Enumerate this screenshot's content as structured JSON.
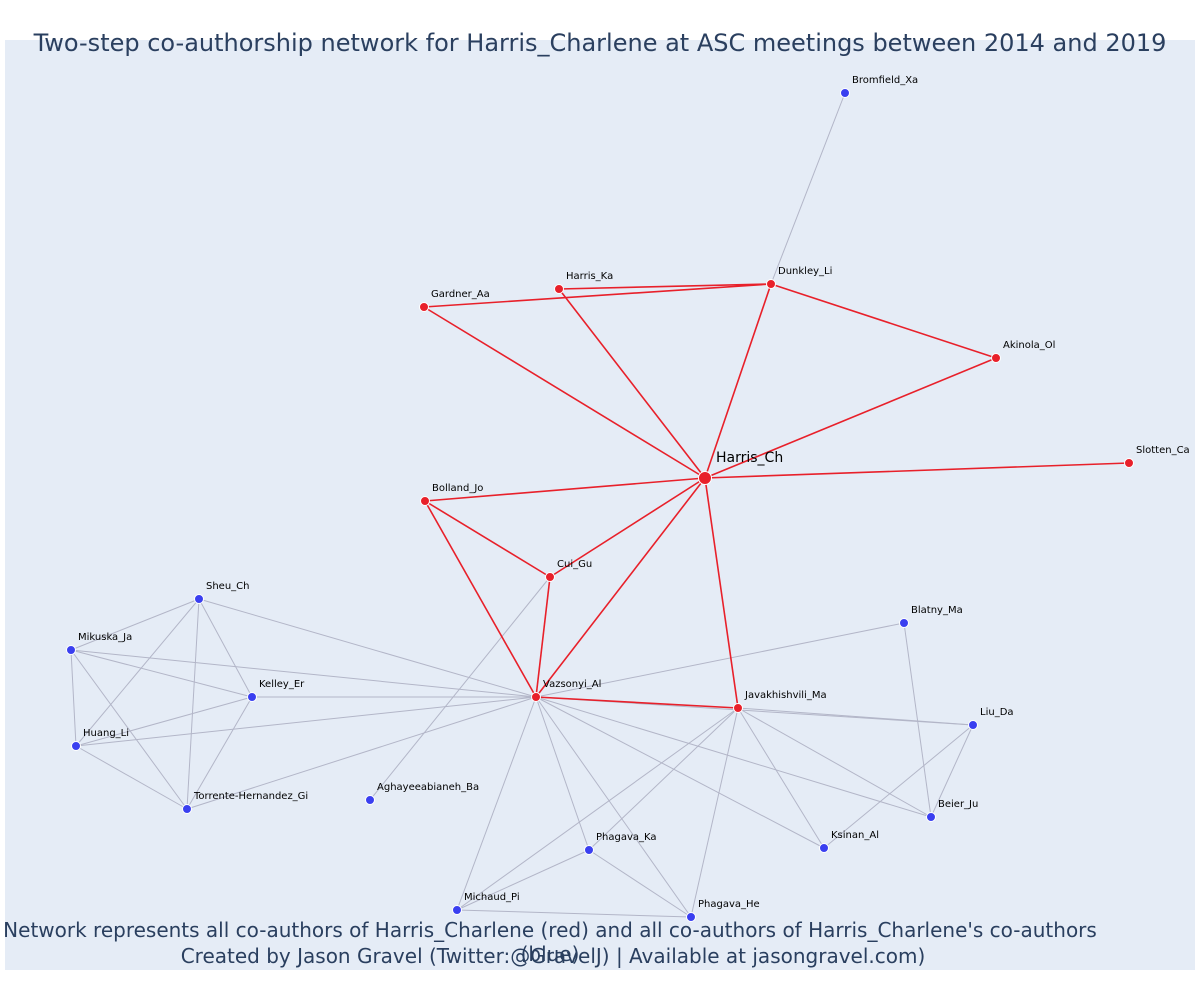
{
  "title": "Two-step co-authorship network for Harris_Charlene at ASC meetings between 2014 and 2019",
  "footer": {
    "line1": "Network represents all co-authors of Harris_Charlene (red) and all co-authors of Harris_Charlene's co-authors (blue)",
    "line2": "Created by Jason Gravel (Twitter:@GravelJ) | Available at jasongravel.com)"
  },
  "colors": {
    "first_degree": "#e8202a",
    "second_degree": "#3a3ff0",
    "first_edge": "#e8202a",
    "second_edge": "#b3b6c8",
    "background": "#e5ecf6"
  },
  "graph": {
    "nodes": [
      {
        "id": "Harris_Ch",
        "group": "center"
      },
      {
        "id": "Bromfield_Xa",
        "group": "second"
      },
      {
        "id": "Dunkley_Li",
        "group": "first"
      },
      {
        "id": "Harris_Ka",
        "group": "first"
      },
      {
        "id": "Gardner_Aa",
        "group": "first"
      },
      {
        "id": "Akinola_Ol",
        "group": "first"
      },
      {
        "id": "Slotten_Ca",
        "group": "first"
      },
      {
        "id": "Bolland_Jo",
        "group": "first"
      },
      {
        "id": "Cui_Gu",
        "group": "first"
      },
      {
        "id": "Vazsonyi_Al",
        "group": "first"
      },
      {
        "id": "Javakhishvili_Ma",
        "group": "first"
      },
      {
        "id": "Sheu_Ch",
        "group": "second"
      },
      {
        "id": "Mikuska_Ja",
        "group": "second"
      },
      {
        "id": "Kelley_Er",
        "group": "second"
      },
      {
        "id": "Huang_Li",
        "group": "second"
      },
      {
        "id": "Torrente-Hernandez_Gi",
        "group": "second"
      },
      {
        "id": "Aghayeeabianeh_Ba",
        "group": "second"
      },
      {
        "id": "Blatny_Ma",
        "group": "second"
      },
      {
        "id": "Liu_Da",
        "group": "second"
      },
      {
        "id": "Beier_Ju",
        "group": "second"
      },
      {
        "id": "Ksinan_Al",
        "group": "second"
      },
      {
        "id": "Phagava_Ka",
        "group": "second"
      },
      {
        "id": "Michaud_Pi",
        "group": "second"
      },
      {
        "id": "Phagava_He",
        "group": "second"
      }
    ],
    "edges": [
      [
        "Harris_Ch",
        "Gardner_Aa",
        "first"
      ],
      [
        "Harris_Ch",
        "Harris_Ka",
        "first"
      ],
      [
        "Harris_Ch",
        "Dunkley_Li",
        "first"
      ],
      [
        "Harris_Ch",
        "Akinola_Ol",
        "first"
      ],
      [
        "Harris_Ch",
        "Slotten_Ca",
        "first"
      ],
      [
        "Harris_Ch",
        "Bolland_Jo",
        "first"
      ],
      [
        "Harris_Ch",
        "Cui_Gu",
        "first"
      ],
      [
        "Harris_Ch",
        "Vazsonyi_Al",
        "first"
      ],
      [
        "Harris_Ch",
        "Javakhishvili_Ma",
        "first"
      ],
      [
        "Gardner_Aa",
        "Dunkley_Li",
        "first"
      ],
      [
        "Harris_Ka",
        "Dunkley_Li",
        "first"
      ],
      [
        "Dunkley_Li",
        "Akinola_Ol",
        "first"
      ],
      [
        "Bolland_Jo",
        "Cui_Gu",
        "first"
      ],
      [
        "Bolland_Jo",
        "Vazsonyi_Al",
        "first"
      ],
      [
        "Cui_Gu",
        "Vazsonyi_Al",
        "first"
      ],
      [
        "Vazsonyi_Al",
        "Javakhishvili_Ma",
        "first"
      ],
      [
        "Dunkley_Li",
        "Bromfield_Xa",
        "second"
      ],
      [
        "Cui_Gu",
        "Aghayeeabianeh_Ba",
        "second"
      ],
      [
        "Sheu_Ch",
        "Mikuska_Ja",
        "second"
      ],
      [
        "Sheu_Ch",
        "Kelley_Er",
        "second"
      ],
      [
        "Sheu_Ch",
        "Huang_Li",
        "second"
      ],
      [
        "Sheu_Ch",
        "Torrente-Hernandez_Gi",
        "second"
      ],
      [
        "Sheu_Ch",
        "Vazsonyi_Al",
        "second"
      ],
      [
        "Mikuska_Ja",
        "Kelley_Er",
        "second"
      ],
      [
        "Mikuska_Ja",
        "Huang_Li",
        "second"
      ],
      [
        "Mikuska_Ja",
        "Torrente-Hernandez_Gi",
        "second"
      ],
      [
        "Mikuska_Ja",
        "Vazsonyi_Al",
        "second"
      ],
      [
        "Kelley_Er",
        "Huang_Li",
        "second"
      ],
      [
        "Kelley_Er",
        "Torrente-Hernandez_Gi",
        "second"
      ],
      [
        "Kelley_Er",
        "Vazsonyi_Al",
        "second"
      ],
      [
        "Huang_Li",
        "Torrente-Hernandez_Gi",
        "second"
      ],
      [
        "Huang_Li",
        "Vazsonyi_Al",
        "second"
      ],
      [
        "Torrente-Hernandez_Gi",
        "Vazsonyi_Al",
        "second"
      ],
      [
        "Vazsonyi_Al",
        "Blatny_Ma",
        "second"
      ],
      [
        "Vazsonyi_Al",
        "Liu_Da",
        "second"
      ],
      [
        "Vazsonyi_Al",
        "Beier_Ju",
        "second"
      ],
      [
        "Vazsonyi_Al",
        "Ksinan_Al",
        "second"
      ],
      [
        "Vazsonyi_Al",
        "Phagava_Ka",
        "second"
      ],
      [
        "Vazsonyi_Al",
        "Michaud_Pi",
        "second"
      ],
      [
        "Vazsonyi_Al",
        "Phagava_He",
        "second"
      ],
      [
        "Javakhishvili_Ma",
        "Liu_Da",
        "second"
      ],
      [
        "Javakhishvili_Ma",
        "Beier_Ju",
        "second"
      ],
      [
        "Javakhishvili_Ma",
        "Ksinan_Al",
        "second"
      ],
      [
        "Javakhishvili_Ma",
        "Phagava_Ka",
        "second"
      ],
      [
        "Javakhishvili_Ma",
        "Michaud_Pi",
        "second"
      ],
      [
        "Javakhishvili_Ma",
        "Phagava_He",
        "second"
      ],
      [
        "Blatny_Ma",
        "Beier_Ju",
        "second"
      ],
      [
        "Liu_Da",
        "Beier_Ju",
        "second"
      ],
      [
        "Liu_Da",
        "Ksinan_Al",
        "second"
      ],
      [
        "Phagava_Ka",
        "Michaud_Pi",
        "second"
      ],
      [
        "Phagava_Ka",
        "Phagava_He",
        "second"
      ],
      [
        "Michaud_Pi",
        "Phagava_He",
        "second"
      ]
    ]
  }
}
